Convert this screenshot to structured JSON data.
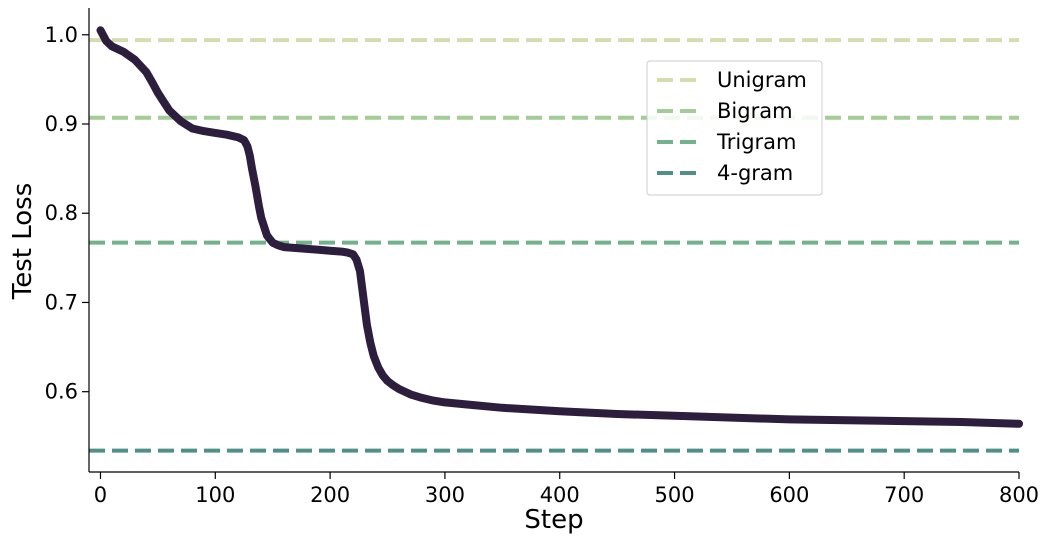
{
  "chart_data": {
    "type": "line",
    "xlabel": "Step",
    "ylabel": "Test Loss",
    "xlim": [
      -10,
      800
    ],
    "ylim": [
      0.51,
      1.03
    ],
    "xticks": [
      0,
      100,
      200,
      300,
      400,
      500,
      600,
      700,
      800
    ],
    "yticks": [
      0.6,
      0.7,
      0.8,
      0.9,
      1.0
    ],
    "xtick_labels": [
      "0",
      "100",
      "200",
      "300",
      "400",
      "500",
      "600",
      "700",
      "800"
    ],
    "ytick_labels": [
      "0.6",
      "0.7",
      "0.8",
      "0.9",
      "1.0"
    ],
    "grid": false,
    "legend_position": "top-right",
    "series": [
      {
        "style": "solid",
        "color": "#2d1e3e",
        "x": [
          0,
          5,
          10,
          20,
          30,
          40,
          45,
          50,
          55,
          60,
          70,
          80,
          90,
          100,
          110,
          120,
          125,
          128,
          130,
          132,
          135,
          138,
          140,
          145,
          150,
          155,
          160,
          170,
          180,
          190,
          200,
          210,
          215,
          220,
          223,
          226,
          228,
          230,
          232,
          235,
          238,
          242,
          246,
          250,
          255,
          260,
          270,
          280,
          290,
          300,
          325,
          350,
          375,
          400,
          450,
          500,
          550,
          600,
          650,
          700,
          750,
          800
        ],
        "y": [
          1.005,
          0.993,
          0.987,
          0.981,
          0.972,
          0.958,
          0.947,
          0.935,
          0.925,
          0.915,
          0.903,
          0.895,
          0.892,
          0.89,
          0.888,
          0.885,
          0.882,
          0.875,
          0.865,
          0.85,
          0.83,
          0.808,
          0.795,
          0.775,
          0.767,
          0.764,
          0.762,
          0.761,
          0.76,
          0.759,
          0.758,
          0.757,
          0.756,
          0.754,
          0.748,
          0.735,
          0.715,
          0.695,
          0.675,
          0.655,
          0.64,
          0.627,
          0.618,
          0.612,
          0.607,
          0.603,
          0.597,
          0.593,
          0.59,
          0.588,
          0.585,
          0.582,
          0.58,
          0.578,
          0.575,
          0.573,
          0.571,
          0.569,
          0.568,
          0.567,
          0.566,
          0.564
        ]
      },
      {
        "name": "Unigram",
        "style": "dashed",
        "color": "#d4ddb0",
        "y": 0.994
      },
      {
        "name": "Bigram",
        "style": "dashed",
        "color": "#a4cc96",
        "y": 0.907
      },
      {
        "name": "Trigram",
        "style": "dashed",
        "color": "#72b38b",
        "y": 0.767
      },
      {
        "name": "4-gram",
        "style": "dashed",
        "color": "#4f9188",
        "y": 0.534
      }
    ]
  }
}
